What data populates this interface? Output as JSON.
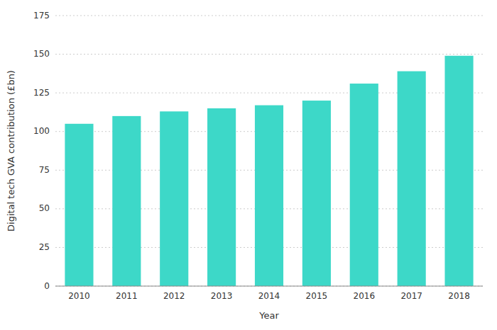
{
  "chart_data": {
    "type": "bar",
    "xlabel": "Year",
    "ylabel": "Digital tech GVA contribution (£bn)",
    "categories": [
      "2010",
      "2011",
      "2012",
      "2013",
      "2014",
      "2015",
      "2016",
      "2017",
      "2018"
    ],
    "values": [
      105,
      110,
      113,
      115,
      117,
      120,
      131,
      139,
      149
    ],
    "color": "#3dd8c8",
    "ylim": [
      0,
      175
    ],
    "yticks": [
      0,
      25,
      50,
      75,
      100,
      125,
      150,
      175
    ],
    "grid": true
  }
}
